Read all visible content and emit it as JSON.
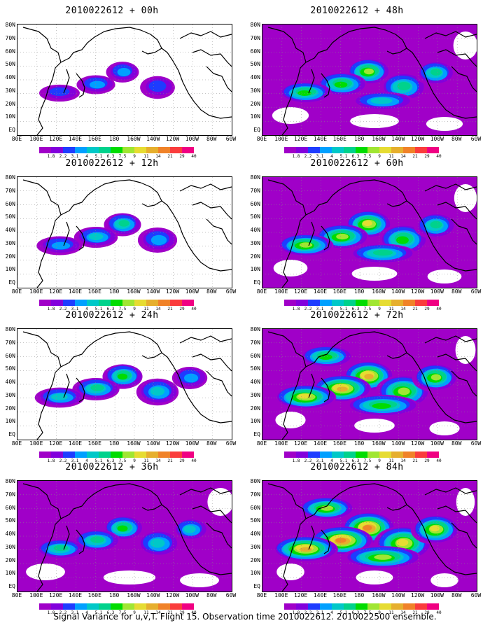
{
  "palette": {
    "white": "#ffffff",
    "levels": [
      {
        "label": "1.8",
        "color": "#a000c8"
      },
      {
        "label": "2.2",
        "color": "#8200dc"
      },
      {
        "label": "3.1",
        "color": "#1e3cff"
      },
      {
        "label": "4",
        "color": "#00a0ff"
      },
      {
        "label": "5.1",
        "color": "#00c8c8"
      },
      {
        "label": "6.3",
        "color": "#00d28c"
      },
      {
        "label": "7.5",
        "color": "#00dc00"
      },
      {
        "label": "9",
        "color": "#a0e632"
      },
      {
        "label": "11",
        "color": "#e6dc32"
      },
      {
        "label": "14",
        "color": "#e6af2d"
      },
      {
        "label": "21",
        "color": "#f08228"
      },
      {
        "label": "29",
        "color": "#fa3c3c"
      },
      {
        "label": "40",
        "color": "#f00082"
      }
    ]
  },
  "axes": {
    "lat_labels": [
      "80N",
      "70N",
      "60N",
      "50N",
      "40N",
      "30N",
      "20N",
      "10N",
      "EQ"
    ],
    "lon_labels": [
      "80E",
      "100E",
      "120E",
      "140E",
      "160E",
      "180",
      "160W",
      "140W",
      "120W",
      "100W",
      "80W",
      "60W"
    ]
  },
  "panels": [
    {
      "title": "2010022612 + 00h",
      "intensity": 0.15
    },
    {
      "title": "2010022612 + 48h",
      "intensity": 0.55
    },
    {
      "title": "2010022612 + 12h",
      "intensity": 0.3
    },
    {
      "title": "2010022612 + 60h",
      "intensity": 0.65
    },
    {
      "title": "2010022612 + 24h",
      "intensity": 0.4
    },
    {
      "title": "2010022612 + 72h",
      "intensity": 0.8
    },
    {
      "title": "2010022612 + 36h",
      "intensity": 0.45
    },
    {
      "title": "2010022612 + 84h",
      "intensity": 0.9
    }
  ],
  "footer": {
    "caption": "Signal Variance for u,v,T. Flight 15. Observation time 2010022612. 2010022500 ensemble."
  }
}
